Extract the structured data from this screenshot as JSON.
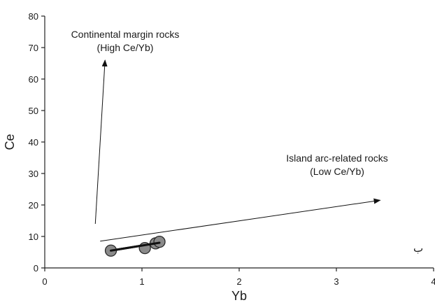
{
  "chart_data": {
    "type": "scatter",
    "xlabel": "Yb",
    "ylabel": "Ce",
    "xlim": [
      0,
      4
    ],
    "ylim": [
      0,
      80
    ],
    "x_ticks": [
      "0",
      "1",
      "2",
      "3",
      "4"
    ],
    "y_ticks": [
      "0",
      "10",
      "20",
      "30",
      "40",
      "50",
      "60",
      "70",
      "80"
    ],
    "grid": false,
    "legend": "none",
    "points": [
      {
        "x": 0.68,
        "y": 5.5
      },
      {
        "x": 1.03,
        "y": 6.3
      },
      {
        "x": 1.14,
        "y": 7.8
      },
      {
        "x": 1.18,
        "y": 8.3
      }
    ],
    "trend_line": {
      "from": {
        "x": 0.68,
        "y": 5.5
      },
      "to": {
        "x": 1.18,
        "y": 8.0
      }
    },
    "arrows": [
      {
        "name": "continental",
        "from": {
          "x": 0.52,
          "y": 14
        },
        "to": {
          "x": 0.62,
          "y": 66
        }
      },
      {
        "name": "island-arc",
        "from": {
          "x": 0.57,
          "y": 8.5
        },
        "to": {
          "x": 3.45,
          "y": 21.5
        }
      }
    ],
    "annotations": {
      "continental_line1": "Continental margin rocks",
      "continental_line2": "(High Ce/Yb)",
      "island_line1": "Island arc-related rocks",
      "island_line2": "(Low Ce/Yb)",
      "panel_label": "ب"
    },
    "colors": {
      "marker_fill": "#8a8a8a",
      "marker_stroke": "#2a2a2a",
      "line": "#111111"
    }
  }
}
